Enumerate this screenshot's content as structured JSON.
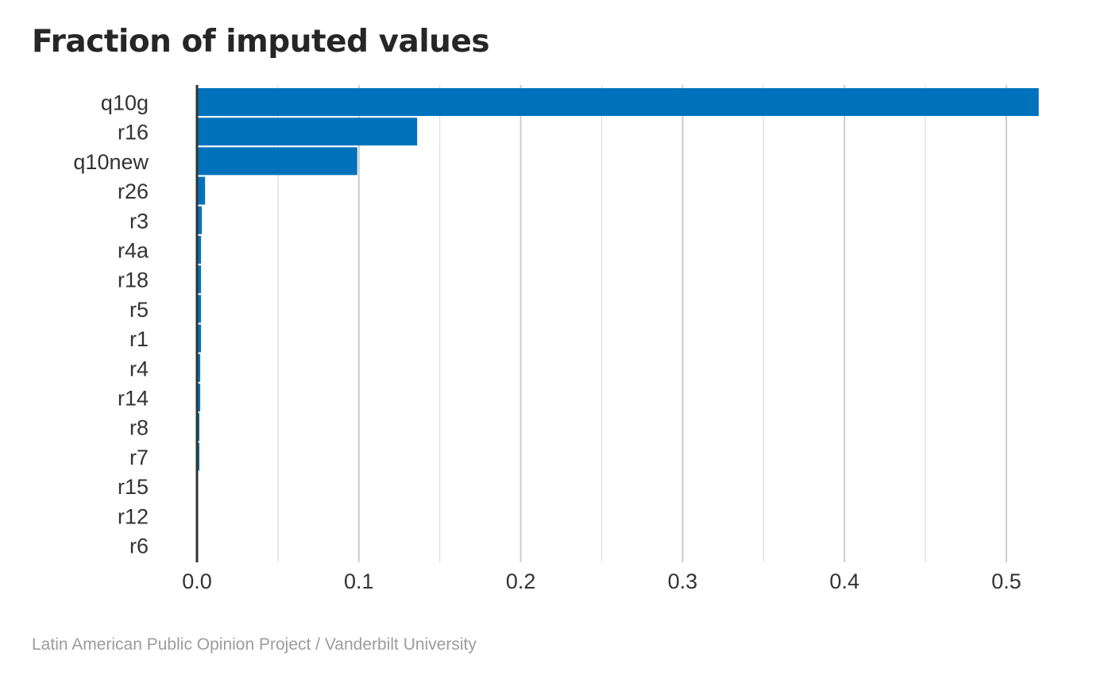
{
  "title": "Fraction of imputed values",
  "caption": "Latin American Public Opinion Project / Vanderbilt University",
  "colors": {
    "bar": "#0072BC",
    "grid_major": "#cccccc",
    "grid_minor": "#dddddd",
    "axis": "#333333"
  },
  "chart_data": {
    "type": "bar",
    "orientation": "horizontal",
    "categories": [
      "q10g",
      "r16",
      "q10new",
      "r26",
      "r3",
      "r4a",
      "r18",
      "r5",
      "r1",
      "r4",
      "r14",
      "r8",
      "r7",
      "r15",
      "r12",
      "r6"
    ],
    "values": [
      0.52,
      0.136,
      0.099,
      0.005,
      0.003,
      0.0025,
      0.0025,
      0.0025,
      0.0025,
      0.002,
      0.002,
      0.0015,
      0.0015,
      0.0005,
      0.0005,
      0.0005
    ],
    "xlim": [
      0,
      0.52
    ],
    "xticks": [
      "0.0",
      "0.1",
      "0.2",
      "0.3",
      "0.4",
      "0.5"
    ],
    "xtick_values": [
      0,
      0.1,
      0.2,
      0.3,
      0.4,
      0.5
    ],
    "grid": true
  }
}
